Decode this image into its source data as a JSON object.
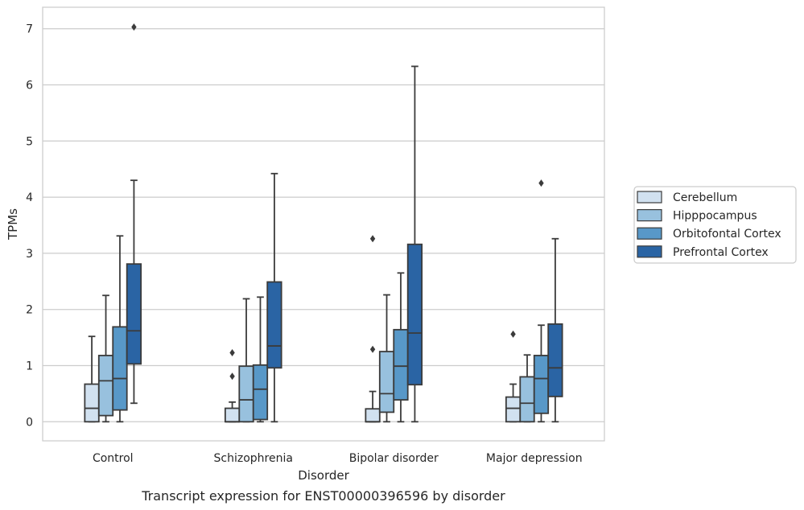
{
  "chart_data": {
    "type": "box",
    "xlabel": "Disorder",
    "ylabel": "TPMs",
    "caption": "Transcript expression for ENST00000396596 by disorder",
    "ylim": [
      -0.35,
      7.4
    ],
    "yticks": [
      "0",
      "1",
      "2",
      "3",
      "4",
      "5",
      "6",
      "7"
    ],
    "grid": "horizontal",
    "legend_position": "right",
    "categories": [
      "Control",
      "Schizophrenia",
      "Bipolar disorder",
      "Major depression"
    ],
    "series": [
      {
        "name": "Cerebellum",
        "color": "#d1e1f0",
        "boxes": [
          {
            "whisker_low": 0,
            "q1": 0,
            "median": 0.24,
            "q3": 0.67,
            "whisker_high": 1.52,
            "outliers": []
          },
          {
            "whisker_low": 0,
            "q1": 0,
            "median": 0,
            "q3": 0.24,
            "whisker_high": 0.35,
            "outliers": [
              0.81,
              1.23
            ]
          },
          {
            "whisker_low": 0,
            "q1": 0,
            "median": 0,
            "q3": 0.23,
            "whisker_high": 0.54,
            "outliers": [
              1.29,
              3.26
            ]
          },
          {
            "whisker_low": 0,
            "q1": 0,
            "median": 0.24,
            "q3": 0.44,
            "whisker_high": 0.67,
            "outliers": [
              1.56
            ]
          }
        ]
      },
      {
        "name": "Hipppocampus",
        "color": "#98c1de",
        "boxes": [
          {
            "whisker_low": 0,
            "q1": 0.11,
            "median": 0.73,
            "q3": 1.18,
            "whisker_high": 2.25,
            "outliers": []
          },
          {
            "whisker_low": 0,
            "q1": 0,
            "median": 0.39,
            "q3": 0.99,
            "whisker_high": 2.19,
            "outliers": []
          },
          {
            "whisker_low": 0,
            "q1": 0.17,
            "median": 0.5,
            "q3": 1.25,
            "whisker_high": 2.26,
            "outliers": []
          },
          {
            "whisker_low": 0,
            "q1": 0,
            "median": 0.33,
            "q3": 0.8,
            "whisker_high": 1.19,
            "outliers": []
          }
        ]
      },
      {
        "name": "Orbitofontal Cortex",
        "color": "#5898c8",
        "boxes": [
          {
            "whisker_low": 0,
            "q1": 0.21,
            "median": 0.77,
            "q3": 1.69,
            "whisker_high": 3.31,
            "outliers": []
          },
          {
            "whisker_low": 0,
            "q1": 0.04,
            "median": 0.58,
            "q3": 1.01,
            "whisker_high": 2.22,
            "outliers": []
          },
          {
            "whisker_low": 0,
            "q1": 0.39,
            "median": 0.99,
            "q3": 1.64,
            "whisker_high": 2.65,
            "outliers": []
          },
          {
            "whisker_low": 0,
            "q1": 0.15,
            "median": 0.77,
            "q3": 1.18,
            "whisker_high": 1.72,
            "outliers": [
              4.25
            ]
          }
        ]
      },
      {
        "name": "Prefrontal Cortex",
        "color": "#2a64a4",
        "boxes": [
          {
            "whisker_low": 0.33,
            "q1": 1.03,
            "median": 1.62,
            "q3": 2.81,
            "whisker_high": 4.3,
            "outliers": [
              7.03
            ]
          },
          {
            "whisker_low": 0,
            "q1": 0.96,
            "median": 1.35,
            "q3": 2.49,
            "whisker_high": 4.42,
            "outliers": []
          },
          {
            "whisker_low": 0,
            "q1": 0.66,
            "median": 1.58,
            "q3": 3.16,
            "whisker_high": 6.33,
            "outliers": []
          },
          {
            "whisker_low": 0,
            "q1": 0.45,
            "median": 0.96,
            "q3": 1.74,
            "whisker_high": 3.26,
            "outliers": []
          }
        ]
      }
    ]
  }
}
